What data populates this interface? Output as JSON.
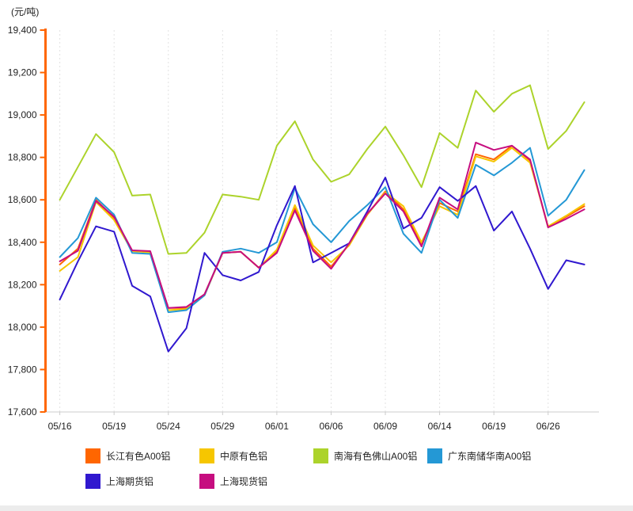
{
  "chart_data": {
    "type": "line",
    "unit_label": "(元/吨)",
    "y_axis": {
      "min": 17600,
      "max": 19400,
      "step": 200,
      "tick_labels": [
        "19,400",
        "19,200",
        "19,000",
        "18,800",
        "18,600",
        "18,400",
        "18,200",
        "18,000",
        "17,800",
        "17,600"
      ],
      "axis_color": "#FF6600"
    },
    "x_axis": {
      "tick_labels": [
        "05/16",
        "05/19",
        "05/24",
        "05/29",
        "06/01",
        "06/06",
        "06/09",
        "06/14",
        "06/19",
        "06/26"
      ],
      "points_per_tick": 3,
      "n_points": 30,
      "axis_color": "#cccccc",
      "grid": "dashed-vertical"
    },
    "legend_position": "bottom",
    "series": [
      {
        "name": "长江有色A00铝",
        "color": "#FF6600",
        "values": [
          18295,
          18370,
          18600,
          18515,
          18360,
          18355,
          18090,
          18090,
          18155,
          18350,
          18355,
          18280,
          18360,
          18560,
          18370,
          18285,
          18390,
          18530,
          18640,
          18555,
          18390,
          18585,
          18545,
          18815,
          18790,
          18855,
          18785,
          18470,
          18520,
          18570
        ]
      },
      {
        "name": "中原有色铝",
        "color": "#F6C600",
        "values": [
          18265,
          18330,
          18590,
          18505,
          18358,
          18352,
          18080,
          18085,
          18150,
          18350,
          18355,
          18280,
          18365,
          18575,
          18385,
          18305,
          18385,
          18530,
          18635,
          18570,
          18400,
          18570,
          18530,
          18805,
          18780,
          18845,
          18775,
          18475,
          18525,
          18580
        ]
      },
      {
        "name": "南海有色佛山A00铝",
        "color": "#ACD32B",
        "values": [
          18600,
          18755,
          18910,
          18825,
          18620,
          18625,
          18345,
          18350,
          18445,
          18625,
          18615,
          18600,
          18855,
          18970,
          18790,
          18685,
          18720,
          18840,
          18945,
          18810,
          18660,
          18915,
          18845,
          19115,
          19015,
          19100,
          19140,
          18840,
          18925,
          19060
        ]
      },
      {
        "name": "广东南储华南A00铝",
        "color": "#2498D5",
        "values": [
          18330,
          18420,
          18610,
          18530,
          18350,
          18345,
          18070,
          18080,
          18150,
          18355,
          18370,
          18350,
          18400,
          18655,
          18485,
          18400,
          18500,
          18575,
          18660,
          18440,
          18350,
          18600,
          18515,
          18765,
          18715,
          18775,
          18845,
          18525,
          18600,
          18740
        ]
      },
      {
        "name": "上海期货铝",
        "color": "#3018CF",
        "values": [
          18130,
          18310,
          18475,
          18450,
          18195,
          18145,
          17885,
          17995,
          18350,
          18245,
          18220,
          18260,
          18480,
          18665,
          18305,
          18350,
          18395,
          18545,
          18705,
          18465,
          18515,
          18660,
          18595,
          18665,
          18455,
          18545,
          18370,
          18180,
          18315,
          18295
        ]
      },
      {
        "name": "上海现货铝",
        "color": "#C60D7F",
        "values": [
          18310,
          18360,
          18595,
          18520,
          18362,
          18358,
          18090,
          18095,
          18155,
          18350,
          18355,
          18280,
          18350,
          18550,
          18360,
          18275,
          18395,
          18535,
          18630,
          18545,
          18380,
          18610,
          18555,
          18870,
          18835,
          18855,
          18790,
          18470,
          18510,
          18555
        ]
      }
    ]
  }
}
